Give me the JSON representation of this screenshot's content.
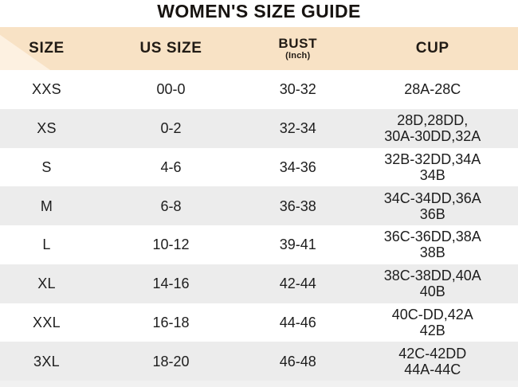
{
  "title": "WOMEN'S SIZE GUIDE",
  "columns": {
    "size": "SIZE",
    "us_size": "US SIZE",
    "bust": "BUST",
    "bust_sub": "(Inch)",
    "cup": "CUP"
  },
  "rows": [
    {
      "size": "XXS",
      "us": "00-0",
      "bust": "30-32",
      "cup": "28A-28C"
    },
    {
      "size": "XS",
      "us": "0-2",
      "bust": "32-34",
      "cup": "28D,28DD,\n30A-30DD,32A"
    },
    {
      "size": "S",
      "us": "4-6",
      "bust": "34-36",
      "cup": "32B-32DD,34A\n34B"
    },
    {
      "size": "M",
      "us": "6-8",
      "bust": "36-38",
      "cup": "34C-34DD,36A\n36B"
    },
    {
      "size": "L",
      "us": "10-12",
      "bust": "39-41",
      "cup": "36C-36DD,38A\n38B"
    },
    {
      "size": "XL",
      "us": "14-16",
      "bust": "42-44",
      "cup": "38C-38DD,40A\n40B"
    },
    {
      "size": "XXL",
      "us": "16-18",
      "bust": "44-46",
      "cup": "40C-DD,42A\n42B"
    },
    {
      "size": "3XL",
      "us": "18-20",
      "bust": "46-48",
      "cup": "42C-42DD\n44A-44C"
    }
  ],
  "colors": {
    "header_bg": "#f8e2c5",
    "header_sheen": "#fdf1e1",
    "row_bg": "#ffffff",
    "row_alt_bg": "#ececec",
    "text": "#1d1d1d",
    "title": "#171310"
  }
}
